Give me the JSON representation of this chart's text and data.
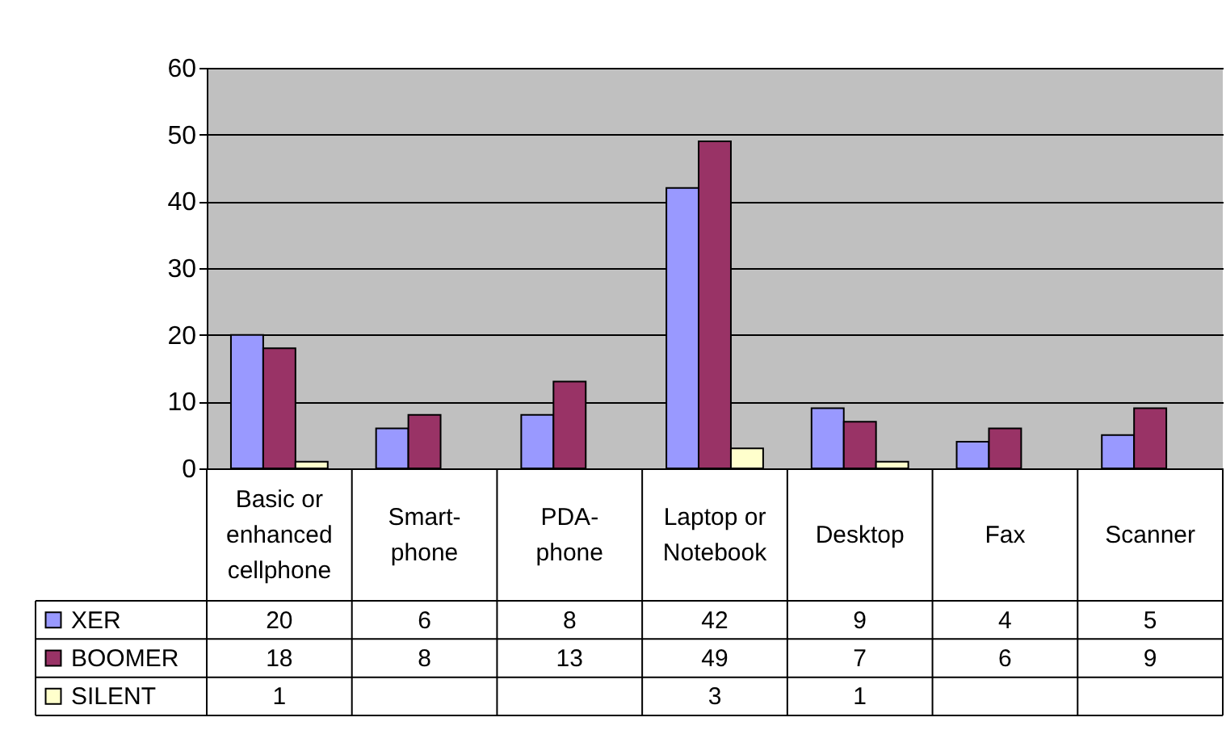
{
  "chart_data": {
    "type": "bar",
    "categories": [
      "Basic or enhanced cellphone",
      "Smart-phone",
      "PDA-phone",
      "Laptop or Notebook",
      "Desktop",
      "Fax",
      "Scanner"
    ],
    "series": [
      {
        "name": "XER",
        "color": "#9999ff",
        "values": [
          20,
          6,
          8,
          42,
          9,
          4,
          5
        ]
      },
      {
        "name": "BOOMER",
        "color": "#993366",
        "values": [
          18,
          8,
          13,
          49,
          7,
          6,
          9
        ]
      },
      {
        "name": "SILENT",
        "color": "#ffffcc",
        "values": [
          1,
          null,
          null,
          3,
          1,
          null,
          null
        ]
      }
    ],
    "ylim": [
      0,
      60
    ],
    "yticks": [
      0,
      10,
      20,
      30,
      40,
      50,
      60
    ],
    "grid": "y",
    "legend": "bottom",
    "data_labels": true
  }
}
